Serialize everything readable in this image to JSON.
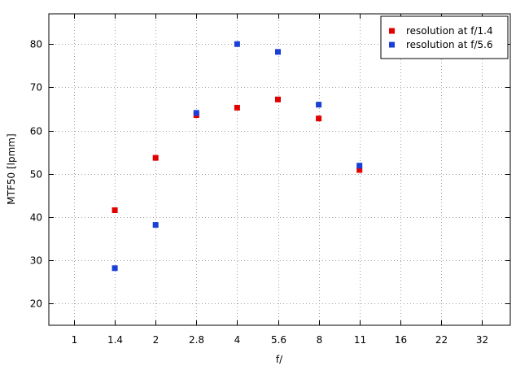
{
  "chart_data": {
    "type": "scatter",
    "title": "",
    "xlabel": "f/",
    "ylabel": "MTF50 [lpmm]",
    "x_categories": [
      "1",
      "1.4",
      "2",
      "2.8",
      "4",
      "5.6",
      "8",
      "11",
      "16",
      "22",
      "32"
    ],
    "yticks": [
      20,
      30,
      40,
      50,
      60,
      70,
      80
    ],
    "ylim": [
      15,
      87
    ],
    "grid": true,
    "legend_position": "top-right",
    "series": [
      {
        "name": "resolution at f/1.4",
        "color": "#e00000",
        "points": [
          {
            "x": "1.4",
            "y": 41.6
          },
          {
            "x": "2",
            "y": 53.7
          },
          {
            "x": "2.8",
            "y": 63.6
          },
          {
            "x": "4",
            "y": 65.3
          },
          {
            "x": "5.6",
            "y": 67.2
          },
          {
            "x": "8",
            "y": 62.8
          },
          {
            "x": "11",
            "y": 50.9
          }
        ]
      },
      {
        "name": "resolution at f/5.6",
        "color": "#1a3fd6",
        "points": [
          {
            "x": "1.4",
            "y": 28.2
          },
          {
            "x": "2",
            "y": 38.2
          },
          {
            "x": "2.8",
            "y": 64.1
          },
          {
            "x": "4",
            "y": 80.0
          },
          {
            "x": "5.6",
            "y": 78.2
          },
          {
            "x": "8",
            "y": 66.0
          },
          {
            "x": "11",
            "y": 51.9
          }
        ]
      }
    ]
  }
}
